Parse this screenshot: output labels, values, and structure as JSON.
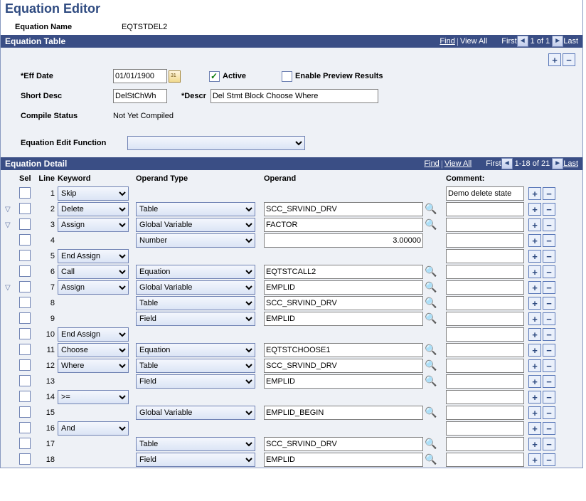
{
  "page": {
    "title": "Equation Editor",
    "equation_name_label": "Equation Name",
    "equation_name_value": "EQTSTDEL2"
  },
  "eq_table": {
    "bar_title": "Equation Table",
    "find": "Find",
    "view_all": "View All",
    "nav_first": "First",
    "nav_last": "Last",
    "nav_count": "1 of 1",
    "eff_date_label": "Eff Date",
    "eff_date_value": "01/01/1900",
    "active_label": "Active",
    "active_checked": true,
    "preview_label": "Enable Preview Results",
    "preview_checked": false,
    "short_desc_label": "Short Desc",
    "short_desc_value": "DelStChWh",
    "descr_label": "Descr",
    "descr_value": "Del Stmt Block Choose Where",
    "compile_status_label": "Compile Status",
    "compile_status_value": "Not Yet Compiled",
    "edit_func_label": "Equation Edit Function",
    "edit_func_value": ""
  },
  "eq_detail": {
    "bar_title": "Equation Detail",
    "find": "Find",
    "view_all": "View All",
    "nav_first": "First",
    "nav_last": "Last",
    "nav_count": "1-18 of 21",
    "hdr_sel": "Sel",
    "hdr_line": "Line",
    "hdr_keyword": "Keyword",
    "hdr_operand_type": "Operand Type",
    "hdr_operand": "Operand",
    "hdr_comment": "Comment:"
  },
  "rows": [
    {
      "exp": "",
      "line": "1",
      "kw": "Skip",
      "ot": "",
      "op": "",
      "lookup": false,
      "cm": "Demo delete state"
    },
    {
      "exp": "▽",
      "line": "2",
      "kw": "Delete",
      "ot": "Table",
      "op": "SCC_SRVIND_DRV",
      "lookup": true,
      "cm": ""
    },
    {
      "exp": "▽",
      "line": "3",
      "kw": "Assign",
      "ot": "Global Variable",
      "op": "FACTOR",
      "lookup": true,
      "cm": ""
    },
    {
      "exp": "",
      "line": "4",
      "kw": "",
      "ot": "Number",
      "op": "3.00000",
      "op_align": "right",
      "lookup": false,
      "cm": ""
    },
    {
      "exp": "",
      "line": "5",
      "kw": "End Assign",
      "ot": "",
      "op": "",
      "lookup": false,
      "cm": ""
    },
    {
      "exp": "",
      "line": "6",
      "kw": "Call",
      "ot": "Equation",
      "op": "EQTSTCALL2",
      "lookup": true,
      "cm": ""
    },
    {
      "exp": "▽",
      "line": "7",
      "kw": "Assign",
      "ot": "Global Variable",
      "op": "EMPLID",
      "lookup": true,
      "cm": ""
    },
    {
      "exp": "",
      "line": "8",
      "kw": "",
      "ot": "Table",
      "op": "SCC_SRVIND_DRV",
      "lookup": true,
      "cm": ""
    },
    {
      "exp": "",
      "line": "9",
      "kw": "",
      "ot": "Field",
      "op": "EMPLID",
      "lookup": true,
      "cm": ""
    },
    {
      "exp": "",
      "line": "10",
      "kw": "End Assign",
      "ot": "",
      "op": "",
      "lookup": false,
      "cm": ""
    },
    {
      "exp": "",
      "line": "11",
      "kw": "Choose",
      "ot": "Equation",
      "op": "EQTSTCHOOSE1",
      "lookup": true,
      "cm": ""
    },
    {
      "exp": "",
      "line": "12",
      "kw": "Where",
      "ot": "Table",
      "op": "SCC_SRVIND_DRV",
      "lookup": true,
      "cm": ""
    },
    {
      "exp": "",
      "line": "13",
      "kw": "",
      "ot": "Field",
      "op": "EMPLID",
      "lookup": true,
      "cm": ""
    },
    {
      "exp": "",
      "line": "14",
      "kw": ">=",
      "ot": "",
      "op": "",
      "lookup": false,
      "cm": ""
    },
    {
      "exp": "",
      "line": "15",
      "kw": "",
      "ot": "Global Variable",
      "op": "EMPLID_BEGIN",
      "lookup": true,
      "cm": ""
    },
    {
      "exp": "",
      "line": "16",
      "kw": "And",
      "ot": "",
      "op": "",
      "lookup": false,
      "cm": ""
    },
    {
      "exp": "",
      "line": "17",
      "kw": "",
      "ot": "Table",
      "op": "SCC_SRVIND_DRV",
      "lookup": true,
      "cm": ""
    },
    {
      "exp": "",
      "line": "18",
      "kw": "",
      "ot": "Field",
      "op": "EMPLID",
      "lookup": true,
      "cm": ""
    }
  ]
}
